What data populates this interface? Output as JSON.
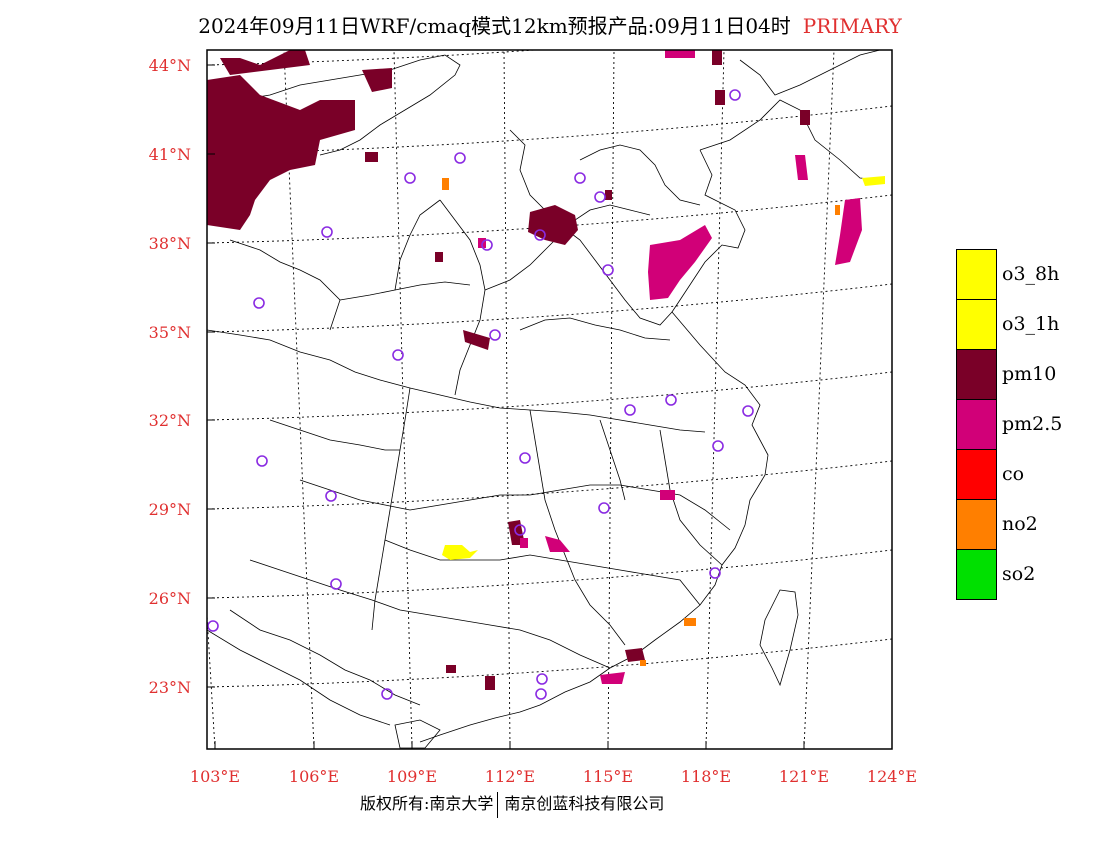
{
  "title": {
    "text": "2024年09月11日WRF/cmaq模式12km预报产品:09月11日04时",
    "tag": "PRIMARY"
  },
  "colors": {
    "axis_label": "#e03030",
    "pm10": "#7a0028",
    "pm25": "#d10078",
    "o3": "#ffff00",
    "no2": "#ff7f00",
    "co": "#ff0000",
    "so2": "#00e000",
    "station": "#8a2be2"
  },
  "map": {
    "lon_ticks": [
      "103°E",
      "106°E",
      "109°E",
      "112°E",
      "115°E",
      "118°E",
      "121°E",
      "124°E"
    ],
    "lat_ticks": [
      "44°N",
      "41°N",
      "38°N",
      "35°N",
      "32°N",
      "29°N",
      "26°N",
      "23°N"
    ],
    "lon_range": [
      102.7,
      124.0
    ],
    "lat_range": [
      20.7,
      44.5
    ]
  },
  "legend": [
    {
      "label": "o3_8h",
      "color": "#ffff00"
    },
    {
      "label": "o3_1h",
      "color": "#ffff00"
    },
    {
      "label": "pm10",
      "color": "#7a0028"
    },
    {
      "label": "pm2.5",
      "color": "#d10078"
    },
    {
      "label": "co",
      "color": "#ff0000"
    },
    {
      "label": "no2",
      "color": "#ff7f00"
    },
    {
      "label": "so2",
      "color": "#00e000"
    }
  ],
  "footer": {
    "left": "版权所有:南京大学",
    "right": "南京创蓝科技有限公司"
  }
}
